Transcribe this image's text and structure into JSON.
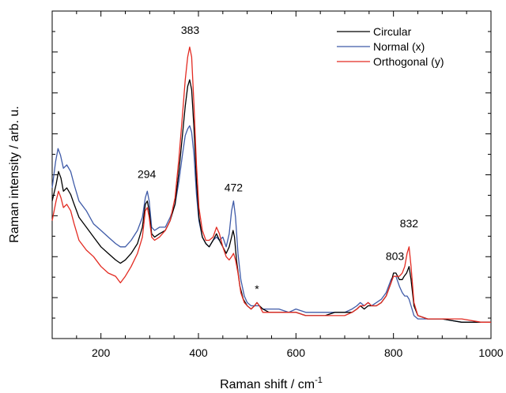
{
  "chart_data": {
    "type": "line",
    "xlabel": "Raman shift / cm",
    "xlabel_superscript": "-1",
    "ylabel": "Raman intensity / arb. u.",
    "xlim": [
      100,
      1000
    ],
    "ylim": [
      0,
      100
    ],
    "x_ticks": [
      200,
      400,
      600,
      800,
      1000
    ],
    "y_ticks_labeled": false,
    "grid": false,
    "legend_position": "top-right",
    "series": [
      {
        "name": "Circular",
        "color": "#000000",
        "points": [
          [
            100,
            42
          ],
          [
            108,
            47
          ],
          [
            113,
            51
          ],
          [
            118,
            49
          ],
          [
            123,
            45
          ],
          [
            130,
            46
          ],
          [
            138,
            44
          ],
          [
            145,
            41
          ],
          [
            155,
            37
          ],
          [
            170,
            34
          ],
          [
            185,
            31
          ],
          [
            200,
            28
          ],
          [
            215,
            26
          ],
          [
            230,
            24
          ],
          [
            240,
            23
          ],
          [
            250,
            24
          ],
          [
            262,
            26
          ],
          [
            275,
            29
          ],
          [
            285,
            34
          ],
          [
            291,
            41
          ],
          [
            295,
            42
          ],
          [
            299,
            39
          ],
          [
            304,
            32
          ],
          [
            310,
            31
          ],
          [
            320,
            32
          ],
          [
            332,
            33
          ],
          [
            342,
            36
          ],
          [
            352,
            41
          ],
          [
            360,
            51
          ],
          [
            367,
            62
          ],
          [
            373,
            71
          ],
          [
            378,
            77
          ],
          [
            382,
            79
          ],
          [
            386,
            76
          ],
          [
            391,
            64
          ],
          [
            396,
            48
          ],
          [
            401,
            37
          ],
          [
            408,
            31
          ],
          [
            415,
            29
          ],
          [
            422,
            28
          ],
          [
            430,
            30
          ],
          [
            437,
            32
          ],
          [
            443,
            30
          ],
          [
            450,
            28
          ],
          [
            457,
            26
          ],
          [
            463,
            28
          ],
          [
            468,
            31
          ],
          [
            471,
            33
          ],
          [
            474,
            31
          ],
          [
            478,
            24
          ],
          [
            485,
            16
          ],
          [
            492,
            12
          ],
          [
            500,
            10
          ],
          [
            508,
            9
          ],
          [
            515,
            10
          ],
          [
            520,
            11
          ],
          [
            525,
            10
          ],
          [
            532,
            9
          ],
          [
            545,
            8
          ],
          [
            565,
            8
          ],
          [
            585,
            8
          ],
          [
            600,
            8
          ],
          [
            620,
            7
          ],
          [
            640,
            7
          ],
          [
            660,
            7
          ],
          [
            680,
            8
          ],
          [
            700,
            8
          ],
          [
            715,
            8
          ],
          [
            725,
            9
          ],
          [
            732,
            10
          ],
          [
            740,
            9
          ],
          [
            748,
            10
          ],
          [
            755,
            10
          ],
          [
            765,
            10
          ],
          [
            775,
            11
          ],
          [
            785,
            13
          ],
          [
            795,
            17
          ],
          [
            800,
            20
          ],
          [
            805,
            20
          ],
          [
            812,
            18
          ],
          [
            818,
            18
          ],
          [
            822,
            19
          ],
          [
            827,
            20
          ],
          [
            832,
            22
          ],
          [
            836,
            18
          ],
          [
            842,
            10
          ],
          [
            850,
            7
          ],
          [
            870,
            6
          ],
          [
            900,
            6
          ],
          [
            940,
            5
          ],
          [
            980,
            5
          ],
          [
            1000,
            5
          ]
        ]
      },
      {
        "name": "Normal (x)",
        "color": "#3f5ba8",
        "points": [
          [
            100,
            46
          ],
          [
            107,
            54
          ],
          [
            112,
            58
          ],
          [
            117,
            56
          ],
          [
            123,
            52
          ],
          [
            130,
            53
          ],
          [
            138,
            51
          ],
          [
            145,
            47
          ],
          [
            155,
            42
          ],
          [
            170,
            39
          ],
          [
            185,
            35
          ],
          [
            200,
            33
          ],
          [
            215,
            31
          ],
          [
            230,
            29
          ],
          [
            240,
            28
          ],
          [
            250,
            28
          ],
          [
            262,
            30
          ],
          [
            275,
            33
          ],
          [
            285,
            37
          ],
          [
            291,
            43
          ],
          [
            295,
            45
          ],
          [
            299,
            42
          ],
          [
            304,
            34
          ],
          [
            310,
            33
          ],
          [
            320,
            34
          ],
          [
            332,
            34
          ],
          [
            342,
            37
          ],
          [
            352,
            41
          ],
          [
            360,
            48
          ],
          [
            367,
            56
          ],
          [
            373,
            62
          ],
          [
            378,
            64
          ],
          [
            382,
            65
          ],
          [
            386,
            63
          ],
          [
            391,
            56
          ],
          [
            396,
            44
          ],
          [
            401,
            36
          ],
          [
            408,
            31
          ],
          [
            415,
            29
          ],
          [
            422,
            28
          ],
          [
            430,
            30
          ],
          [
            437,
            31
          ],
          [
            443,
            30
          ],
          [
            450,
            31
          ],
          [
            457,
            28
          ],
          [
            463,
            32
          ],
          [
            468,
            39
          ],
          [
            472,
            42
          ],
          [
            476,
            37
          ],
          [
            481,
            26
          ],
          [
            487,
            18
          ],
          [
            494,
            13
          ],
          [
            500,
            11
          ],
          [
            508,
            10
          ],
          [
            515,
            10
          ],
          [
            520,
            10
          ],
          [
            525,
            10
          ],
          [
            532,
            9
          ],
          [
            545,
            9
          ],
          [
            565,
            9
          ],
          [
            585,
            8
          ],
          [
            600,
            9
          ],
          [
            620,
            8
          ],
          [
            640,
            8
          ],
          [
            660,
            8
          ],
          [
            680,
            8
          ],
          [
            700,
            8
          ],
          [
            715,
            9
          ],
          [
            725,
            10
          ],
          [
            732,
            11
          ],
          [
            740,
            10
          ],
          [
            748,
            11
          ],
          [
            755,
            10
          ],
          [
            765,
            11
          ],
          [
            775,
            12
          ],
          [
            785,
            14
          ],
          [
            795,
            18
          ],
          [
            800,
            19
          ],
          [
            805,
            19
          ],
          [
            812,
            16
          ],
          [
            818,
            14
          ],
          [
            823,
            13
          ],
          [
            828,
            13
          ],
          [
            832,
            12
          ],
          [
            836,
            10
          ],
          [
            842,
            7
          ],
          [
            850,
            6
          ],
          [
            870,
            6
          ],
          [
            900,
            6
          ],
          [
            940,
            5
          ],
          [
            980,
            5
          ],
          [
            1000,
            5
          ]
        ]
      },
      {
        "name": "Orthogonal (y)",
        "color": "#e32b22",
        "points": [
          [
            100,
            36
          ],
          [
            108,
            42
          ],
          [
            113,
            45
          ],
          [
            118,
            43
          ],
          [
            123,
            40
          ],
          [
            130,
            41
          ],
          [
            138,
            39
          ],
          [
            145,
            35
          ],
          [
            155,
            30
          ],
          [
            170,
            27
          ],
          [
            185,
            25
          ],
          [
            200,
            22
          ],
          [
            215,
            20
          ],
          [
            230,
            19
          ],
          [
            240,
            17
          ],
          [
            250,
            19
          ],
          [
            262,
            22
          ],
          [
            275,
            26
          ],
          [
            285,
            31
          ],
          [
            291,
            39
          ],
          [
            295,
            40
          ],
          [
            299,
            37
          ],
          [
            304,
            31
          ],
          [
            310,
            30
          ],
          [
            320,
            31
          ],
          [
            332,
            33
          ],
          [
            342,
            36
          ],
          [
            352,
            43
          ],
          [
            360,
            55
          ],
          [
            367,
            68
          ],
          [
            373,
            79
          ],
          [
            378,
            86
          ],
          [
            382,
            89
          ],
          [
            386,
            86
          ],
          [
            391,
            71
          ],
          [
            396,
            53
          ],
          [
            401,
            40
          ],
          [
            408,
            33
          ],
          [
            415,
            30
          ],
          [
            422,
            30
          ],
          [
            430,
            31
          ],
          [
            437,
            34
          ],
          [
            443,
            32
          ],
          [
            450,
            28
          ],
          [
            457,
            25
          ],
          [
            463,
            24
          ],
          [
            468,
            25
          ],
          [
            472,
            26
          ],
          [
            476,
            24
          ],
          [
            481,
            20
          ],
          [
            487,
            14
          ],
          [
            494,
            11
          ],
          [
            500,
            10
          ],
          [
            508,
            9
          ],
          [
            515,
            10
          ],
          [
            520,
            11
          ],
          [
            525,
            10
          ],
          [
            532,
            8
          ],
          [
            545,
            8
          ],
          [
            565,
            8
          ],
          [
            585,
            8
          ],
          [
            600,
            8
          ],
          [
            620,
            7
          ],
          [
            640,
            7
          ],
          [
            660,
            7
          ],
          [
            680,
            7
          ],
          [
            700,
            7
          ],
          [
            715,
            8
          ],
          [
            725,
            9
          ],
          [
            732,
            10
          ],
          [
            740,
            10
          ],
          [
            748,
            11
          ],
          [
            755,
            10
          ],
          [
            765,
            10
          ],
          [
            775,
            11
          ],
          [
            785,
            13
          ],
          [
            795,
            17
          ],
          [
            800,
            19
          ],
          [
            805,
            19
          ],
          [
            812,
            19
          ],
          [
            818,
            20
          ],
          [
            823,
            22
          ],
          [
            828,
            26
          ],
          [
            832,
            28
          ],
          [
            836,
            22
          ],
          [
            842,
            11
          ],
          [
            850,
            7
          ],
          [
            870,
            6
          ],
          [
            900,
            6
          ],
          [
            940,
            6
          ],
          [
            980,
            5
          ],
          [
            1000,
            5
          ]
        ]
      }
    ],
    "annotations": [
      {
        "text": "383",
        "x": 383,
        "y": 93
      },
      {
        "text": "294",
        "x": 294,
        "y": 49
      },
      {
        "text": "472",
        "x": 472,
        "y": 45
      },
      {
        "text": "*",
        "x": 520,
        "y": 14
      },
      {
        "text": "803",
        "x": 803,
        "y": 24
      },
      {
        "text": "832",
        "x": 832,
        "y": 34
      }
    ]
  }
}
